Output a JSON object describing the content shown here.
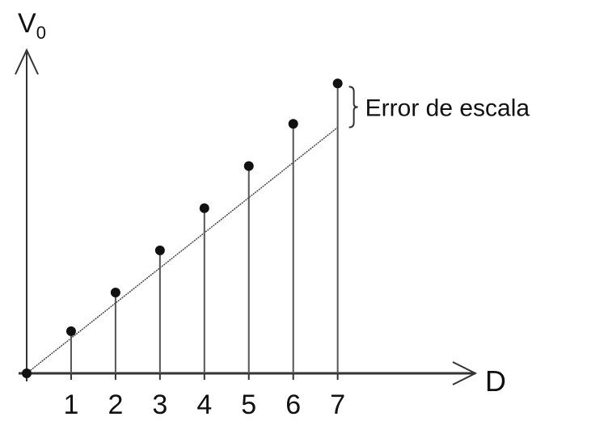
{
  "chart_data": {
    "type": "stem",
    "y_label": "V",
    "y_label_subscript": "0",
    "x_label": "D",
    "annotation": "Error de escala",
    "x": [
      0,
      1,
      2,
      3,
      4,
      5,
      6,
      7
    ],
    "values": [
      0,
      1.2,
      2.3,
      3.5,
      4.7,
      5.9,
      7.1,
      8.25
    ],
    "reference_line": {
      "x": [
        0,
        7
      ],
      "y": [
        0,
        7
      ]
    },
    "xlim": [
      0,
      10.1
    ],
    "ylim": [
      0,
      9.2
    ],
    "xticks": [
      1,
      2,
      3,
      4,
      5,
      6,
      7
    ],
    "color": "#111111"
  }
}
